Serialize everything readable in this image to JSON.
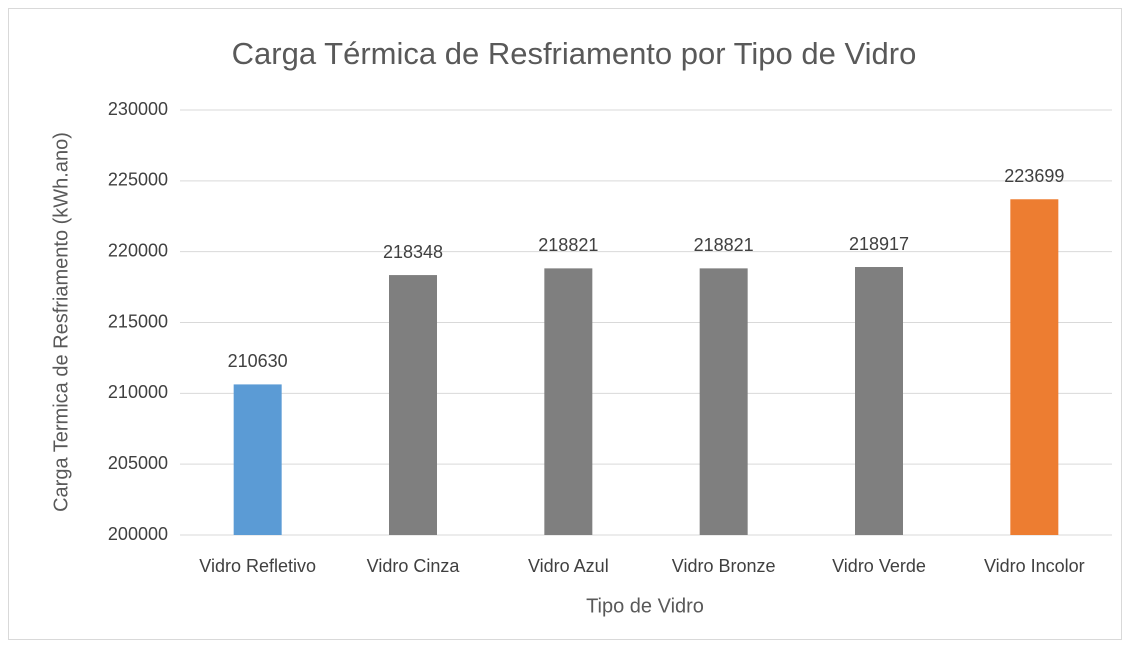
{
  "chart_data": {
    "type": "bar",
    "title": "Carga Térmica de Resfriamento por Tipo de Vidro",
    "x_label": "Tipo de Vidro",
    "y_label": "Carga Termica de Resfriamento (kWh.ano)",
    "categories": [
      "Vidro Refletivo",
      "Vidro Cinza",
      "Vidro Azul",
      "Vidro Bronze",
      "Vidro Verde",
      "Vidro Incolor"
    ],
    "values": [
      210630,
      218348,
      218821,
      218821,
      218917,
      223699
    ],
    "colors": [
      "#5b9bd5",
      "#7f7f7f",
      "#7f7f7f",
      "#7f7f7f",
      "#7f7f7f",
      "#ed7d31"
    ],
    "ylim": [
      200000,
      230000
    ],
    "yticks": [
      200000,
      205000,
      210000,
      215000,
      220000,
      225000,
      230000
    ],
    "grid": true
  }
}
